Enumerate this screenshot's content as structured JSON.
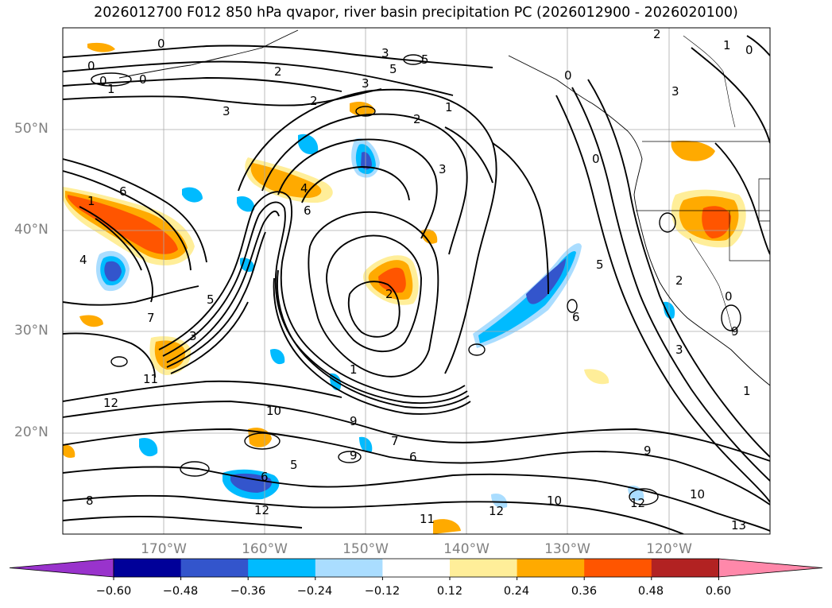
{
  "title": "2026012700 F012 850 hPa qvapor, river basin precipitation PC (2026012900 - 2026020100)",
  "map": {
    "lat_labels": [
      {
        "text": "50°N",
        "lat": 50
      },
      {
        "text": "40°N",
        "lat": 40
      },
      {
        "text": "30°N",
        "lat": 30
      },
      {
        "text": "20°N",
        "lat": 20
      }
    ],
    "lon_labels": [
      {
        "text": "170°W",
        "lon": -170
      },
      {
        "text": "160°W",
        "lon": -160
      },
      {
        "text": "150°W",
        "lon": -150
      },
      {
        "text": "140°W",
        "lon": -140
      },
      {
        "text": "130°W",
        "lon": -130
      },
      {
        "text": "120°W",
        "lon": -120
      }
    ],
    "extent": {
      "lon_min": -180,
      "lon_max": -110,
      "lat_min": 10,
      "lat_max": 60
    },
    "contour_labels": [
      "0",
      "0",
      "0",
      "0",
      "1",
      "2",
      "3",
      "5",
      "5",
      "3",
      "2",
      "1",
      "0",
      "2",
      "3",
      "6",
      "4",
      "1",
      "2",
      "1",
      "6",
      "2",
      "3",
      "5",
      "4",
      "7",
      "3",
      "11",
      "12",
      "8",
      "10",
      "9",
      "9",
      "7",
      "6",
      "5",
      "6",
      "12",
      "9",
      "11",
      "10",
      "12",
      "10",
      "12",
      "13",
      "9",
      "3",
      "1",
      "0",
      "1",
      "6",
      "5",
      "3",
      "2",
      "0",
      "0"
    ]
  },
  "colorbar": {
    "ticks": [
      "−0.60",
      "−0.48",
      "−0.36",
      "−0.24",
      "−0.12",
      "0.12",
      "0.24",
      "0.36",
      "0.48",
      "0.60"
    ],
    "colors": [
      "#9933cc",
      "#000099",
      "#3355cc",
      "#00bbff",
      "#aaddff",
      "#ffffff",
      "#ffee99",
      "#ffaa00",
      "#ff5500",
      "#b22222",
      "#ff88aa"
    ]
  }
}
